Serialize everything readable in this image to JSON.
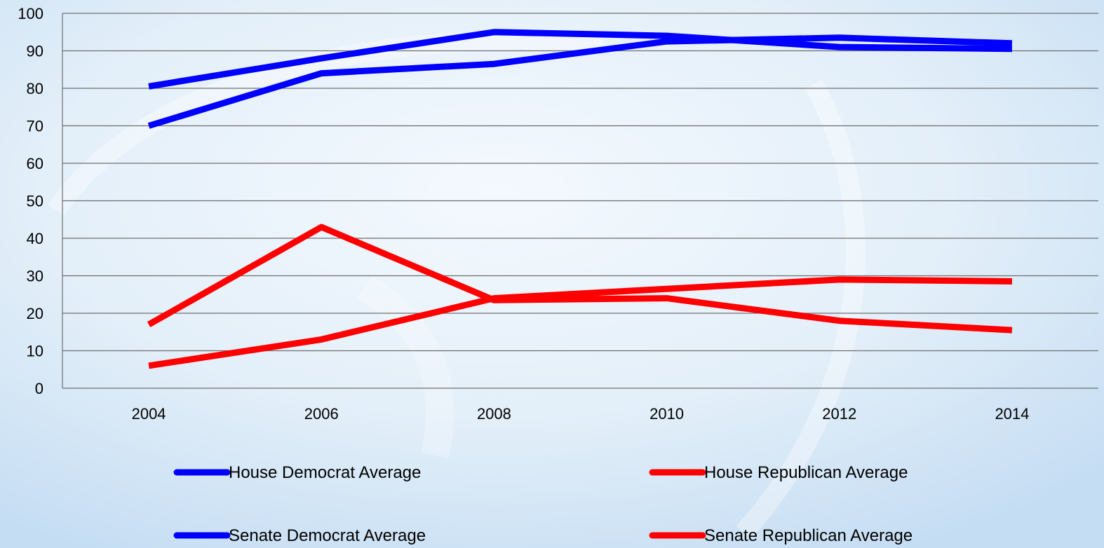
{
  "chart_data": {
    "type": "line",
    "x": [
      "2004",
      "2006",
      "2008",
      "2010",
      "2012",
      "2014"
    ],
    "ylim": [
      0,
      100
    ],
    "yticks": [
      0,
      10,
      20,
      30,
      40,
      50,
      60,
      70,
      80,
      90,
      100
    ],
    "grid": true,
    "legend_position": "bottom",
    "series": [
      {
        "name": "House Democrat Average",
        "color": "#0000ff",
        "values": [
          70,
          84,
          86.5,
          92.5,
          93.5,
          92
        ]
      },
      {
        "name": "House Republican Average",
        "color": "#ff0000",
        "values": [
          17,
          43,
          23.5,
          24,
          18,
          15.5
        ]
      },
      {
        "name": "Senate Democrat Average",
        "color": "#0000ff",
        "values": [
          80.5,
          88,
          95,
          94,
          91,
          90.5
        ]
      },
      {
        "name": "Senate Republican Average",
        "color": "#ff0000",
        "values": [
          6,
          13,
          24,
          26.5,
          29,
          28.5
        ]
      }
    ]
  }
}
